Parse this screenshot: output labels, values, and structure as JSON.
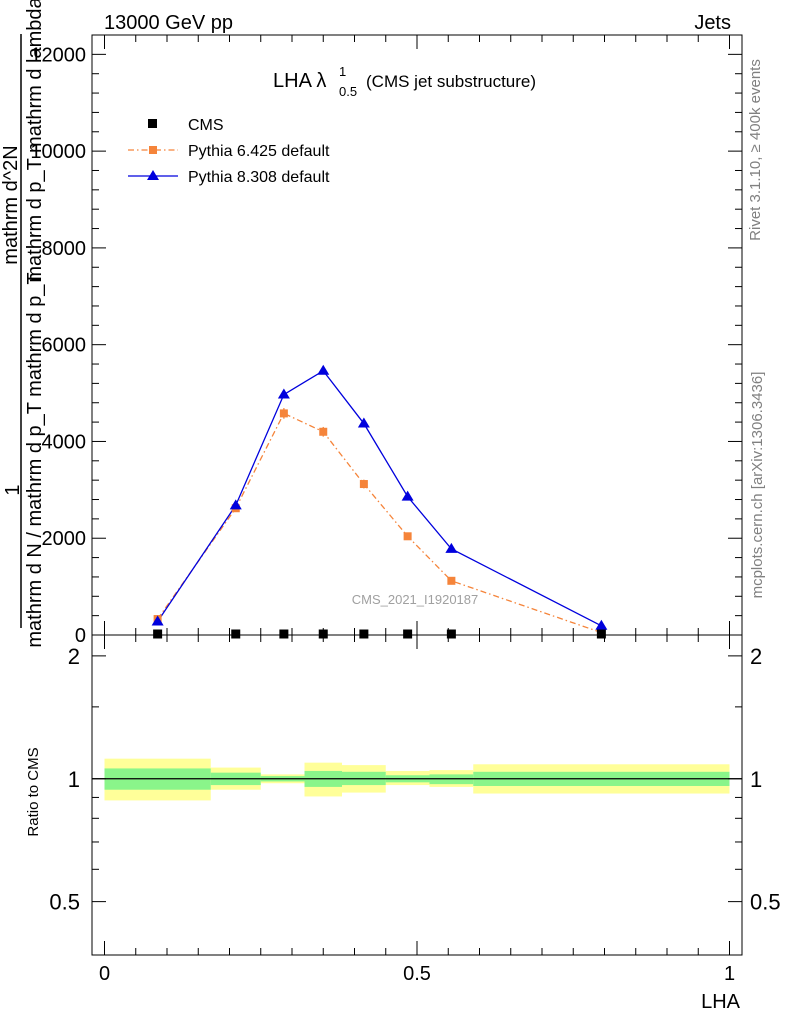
{
  "header": {
    "left": "13000 GeV pp",
    "right": "Jets"
  },
  "side_text": {
    "rivet": "Rivet 3.1.10, ≥ 400k events",
    "mcplots": "mcplots.cern.ch [arXiv:1306.3436]"
  },
  "plot_title": {
    "main": "LHA λ",
    "sup": "1",
    "sub": "0.5",
    "suffix": "(CMS jet substructure)"
  },
  "watermark": "CMS_2021_I1920187",
  "ylabel_main": {
    "one": "1",
    "denom": "mathrm d N / mathrm d p_T mathrm d p_T",
    "numer": "mathrm d^2N",
    "numer2": "mathrm d p_T mathrm d lambda"
  },
  "ylabel_ratio": "Ratio to CMS",
  "xlabel": "LHA",
  "colors": {
    "cms": "#000000",
    "py6": "#f5843a",
    "py8": "#0000dd",
    "band_inner": "#8af58a",
    "band_outer": "#ffff99"
  },
  "chart_data": [
    {
      "type": "line",
      "panel": "main",
      "xlabel": "LHA",
      "ylabel": "1 / mathrm d N / mathrm d p_T mathrm d p_T  mathrm d^2N / mathrm d p_T mathrm d lambda",
      "xlim": [
        -0.02,
        1.02
      ],
      "ylim": [
        0,
        12400
      ],
      "yticks": [
        0,
        2000,
        4000,
        6000,
        8000,
        10000,
        12000
      ],
      "ytick_labels": [
        "0",
        "2000",
        "4000",
        "6000",
        "8000",
        "10000",
        "12000"
      ],
      "legend_position": "top-left",
      "series": [
        {
          "name": "CMS",
          "marker": "square",
          "x": [
            0.085,
            0.21,
            0.287,
            0.35,
            0.415,
            0.485,
            0.555,
            0.795
          ],
          "y": [
            0,
            0,
            0,
            0,
            0,
            0,
            0,
            0
          ]
        },
        {
          "name": "Pythia 6.425 default",
          "marker": "square",
          "style": "dashdot",
          "x": [
            0.085,
            0.21,
            0.287,
            0.35,
            0.415,
            0.485,
            0.555,
            0.795
          ],
          "y": [
            330,
            2620,
            4580,
            4200,
            3120,
            2040,
            1120,
            50
          ],
          "err": [
            40,
            60,
            110,
            100,
            90,
            60,
            50,
            20
          ]
        },
        {
          "name": "Pythia 8.308 default",
          "marker": "triangle",
          "style": "solid",
          "x": [
            0.085,
            0.21,
            0.287,
            0.35,
            0.415,
            0.485,
            0.555,
            0.795
          ],
          "y": [
            280,
            2680,
            4970,
            5460,
            4370,
            2860,
            1780,
            190
          ]
        }
      ]
    },
    {
      "type": "area",
      "panel": "ratio",
      "xlabel": "LHA",
      "ylabel": "Ratio to CMS",
      "xlim": [
        -0.02,
        1.02
      ],
      "ylim": [
        0.37,
        2.25
      ],
      "yticks": [
        0.5,
        1,
        2
      ],
      "ytick_labels": [
        "0.5",
        "1",
        "2"
      ],
      "xticks": [
        0,
        0.5,
        1
      ],
      "xtick_labels": [
        "0",
        "0.5",
        "1"
      ],
      "reference_line": 1,
      "bins": [
        {
          "x0": 0.0,
          "x1": 0.17,
          "inner": [
            0.94,
            1.06
          ],
          "outer": [
            0.885,
            1.12
          ]
        },
        {
          "x0": 0.17,
          "x1": 0.25,
          "inner": [
            0.965,
            1.035
          ],
          "outer": [
            0.94,
            1.065
          ]
        },
        {
          "x0": 0.25,
          "x1": 0.32,
          "inner": [
            0.985,
            1.015
          ],
          "outer": [
            0.975,
            1.025
          ]
        },
        {
          "x0": 0.32,
          "x1": 0.38,
          "inner": [
            0.955,
            1.045
          ],
          "outer": [
            0.905,
            1.095
          ]
        },
        {
          "x0": 0.38,
          "x1": 0.45,
          "inner": [
            0.965,
            1.04
          ],
          "outer": [
            0.925,
            1.08
          ]
        },
        {
          "x0": 0.45,
          "x1": 0.52,
          "inner": [
            0.98,
            1.02
          ],
          "outer": [
            0.965,
            1.045
          ]
        },
        {
          "x0": 0.52,
          "x1": 0.59,
          "inner": [
            0.97,
            1.025
          ],
          "outer": [
            0.955,
            1.05
          ]
        },
        {
          "x0": 0.59,
          "x1": 1.0,
          "inner": [
            0.96,
            1.04
          ],
          "outer": [
            0.92,
            1.085
          ]
        }
      ]
    }
  ]
}
